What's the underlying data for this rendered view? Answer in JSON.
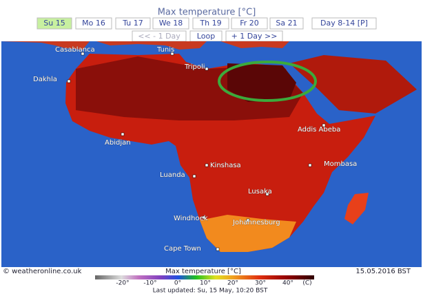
{
  "header": {
    "title": "Max temperature [°C]",
    "tabs": [
      "Su 15",
      "Mo 16",
      "Tu 17",
      "We 18",
      "Th 19",
      "Fr 20",
      "Sa 21",
      "Day 8-14 [P]"
    ],
    "nav": [
      "<< - 1 Day",
      "Loop",
      "+ 1 Day >>"
    ]
  },
  "map": {
    "cities": [
      "Casablanca",
      "Tunis",
      "Tripoli",
      "Dakhla",
      "Abidjan",
      "Addis Abeba",
      "Kinshasa",
      "Mombasa",
      "Luanda",
      "Lusaka",
      "Windhoek",
      "Johannesburg",
      "Cape Town"
    ]
  },
  "footer": {
    "source": "© weatheronline.co.uk",
    "legend_title": "Max temperature [°C]",
    "date": "15.05.2016 BST",
    "scale_labels": [
      "-20°",
      "-10°",
      "0°",
      "10°",
      "20°",
      "30°",
      "40°",
      "(C)"
    ],
    "last_updated": "Last updated: Su, 15 May, 10:20 BST"
  }
}
